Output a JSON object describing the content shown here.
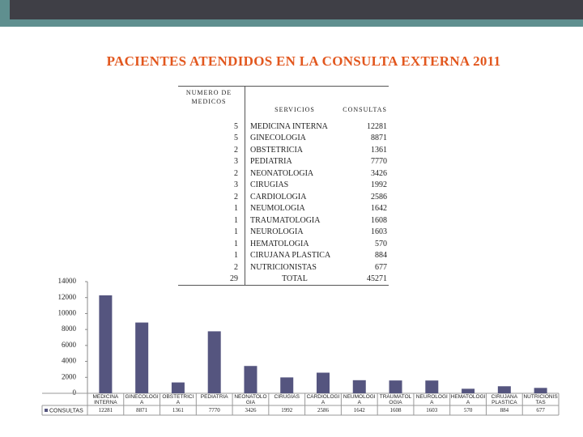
{
  "title": "PACIENTES ATENDIDOS EN LA CONSULTA EXTERNA 2011",
  "table": {
    "headers": [
      "NUMERO DE MEDICOS",
      "SERVICIOS",
      "CONSULTAS"
    ],
    "rows": [
      [
        "5",
        "MEDICINA INTERNA",
        "12281"
      ],
      [
        "5",
        "GINECOLOGIA",
        "8871"
      ],
      [
        "2",
        "OBSTETRICIA",
        "1361"
      ],
      [
        "3",
        "PEDIATRIA",
        "7770"
      ],
      [
        "2",
        "NEONATOLOGIA",
        "3426"
      ],
      [
        "3",
        "CIRUGIAS",
        "1992"
      ],
      [
        "2",
        "CARDIOLOGIA",
        "2586"
      ],
      [
        "1",
        "NEUMOLOGIA",
        "1642"
      ],
      [
        "1",
        "TRAUMATOLOGIA",
        "1608"
      ],
      [
        "1",
        "NEUROLOGIA",
        "1603"
      ],
      [
        "1",
        "HEMATOLOGIA",
        "570"
      ],
      [
        "1",
        "CIRUJANA PLASTICA",
        "884"
      ],
      [
        "2",
        "NUTRICIONISTAS",
        "677"
      ]
    ],
    "total": [
      "29",
      "TOTAL",
      "45271"
    ]
  },
  "chart_data": {
    "type": "bar",
    "categories": [
      "MEDICINA INTERNA",
      "GINECOLOGIA",
      "OBSTETRICIA",
      "PEDIATRIA",
      "NEONATOLOGIA",
      "CIRUGIAS",
      "CARDIOLOGIA",
      "NEUMOLOGIA",
      "TRAUMATOLOGIA",
      "NEUROLOGIA",
      "HEMATOLOGIA",
      "CIRUJANA PLASTICA",
      "NUTRICIONISTAS"
    ],
    "series": [
      {
        "name": "CONSULTAS",
        "color": "#55557f",
        "values": [
          12281,
          8871,
          1361,
          7770,
          3426,
          1992,
          2586,
          1642,
          1608,
          1603,
          570,
          884,
          677
        ]
      }
    ],
    "ylim": [
      0,
      14000
    ],
    "yticks": [
      0,
      2000,
      4000,
      6000,
      8000,
      10000,
      12000,
      14000
    ]
  }
}
